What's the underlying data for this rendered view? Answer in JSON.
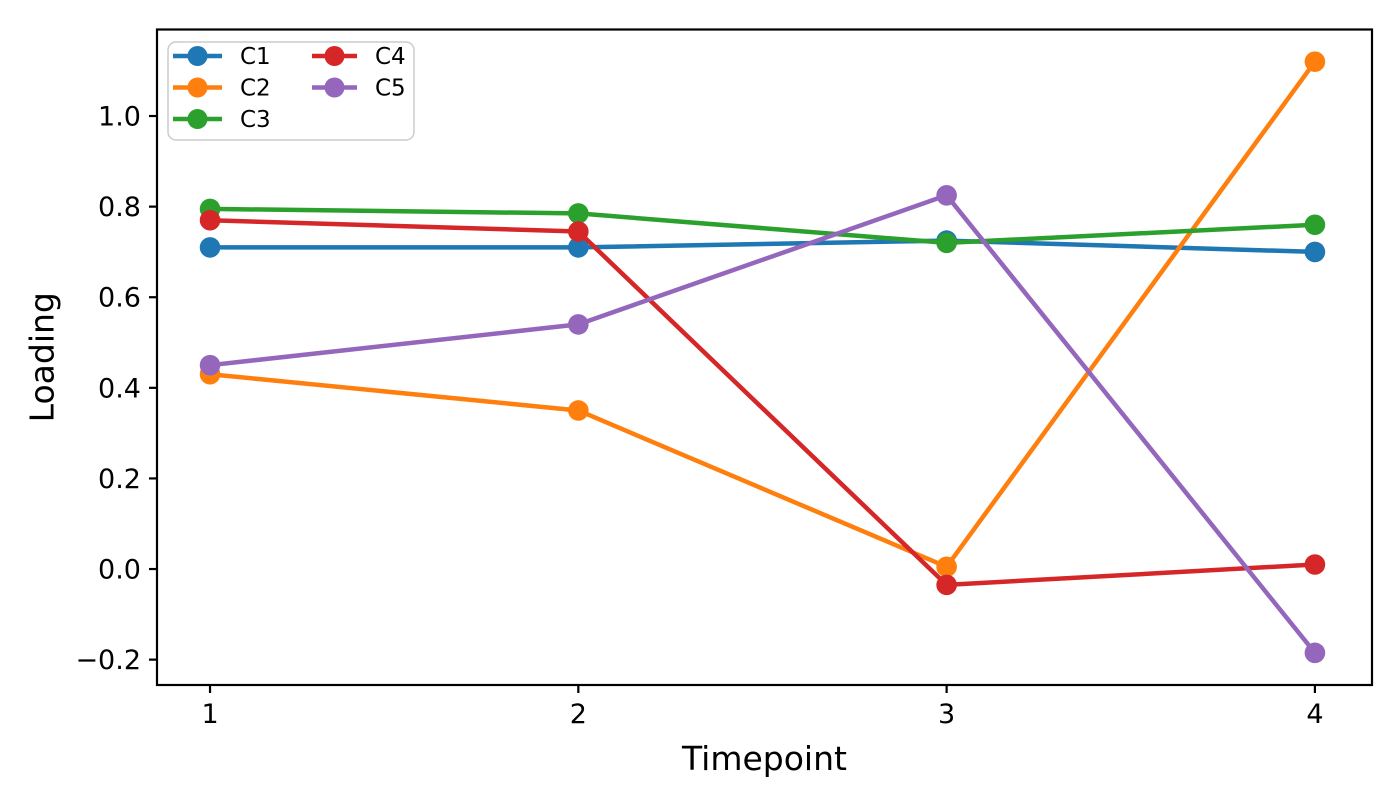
{
  "chart_data": {
    "type": "line",
    "title": "",
    "xlabel": "Timepoint",
    "ylabel": "Loading",
    "x": [
      1,
      2,
      3,
      4
    ],
    "x_tick_labels": [
      "1",
      "2",
      "3",
      "4"
    ],
    "y_tick_values": [
      -0.2,
      0.0,
      0.2,
      0.4,
      0.6,
      0.8,
      1.0
    ],
    "y_tick_labels": [
      "−0.2",
      "0.0",
      "0.2",
      "0.4",
      "0.6",
      "0.8",
      "1.0"
    ],
    "xlim": [
      0.856,
      4.155
    ],
    "ylim": [
      -0.256,
      1.191
    ],
    "grid": false,
    "legend_position": "upper left",
    "legend_columns": 2,
    "marker": "circle",
    "series": [
      {
        "name": "C1",
        "color": "#1f77b4",
        "values": [
          0.71,
          0.71,
          0.725,
          0.7
        ]
      },
      {
        "name": "C2",
        "color": "#ff7f0e",
        "values": [
          0.43,
          0.35,
          0.005,
          1.12
        ]
      },
      {
        "name": "C3",
        "color": "#2ca02c",
        "values": [
          0.795,
          0.785,
          0.72,
          0.76
        ]
      },
      {
        "name": "C4",
        "color": "#d62728",
        "values": [
          0.77,
          0.745,
          -0.035,
          0.01
        ]
      },
      {
        "name": "C5",
        "color": "#9467bd",
        "values": [
          0.45,
          0.54,
          0.825,
          -0.185
        ]
      }
    ],
    "axis_color": "#000000",
    "legend_border_color": "#cccccc",
    "legend_background": "#ffffff"
  }
}
